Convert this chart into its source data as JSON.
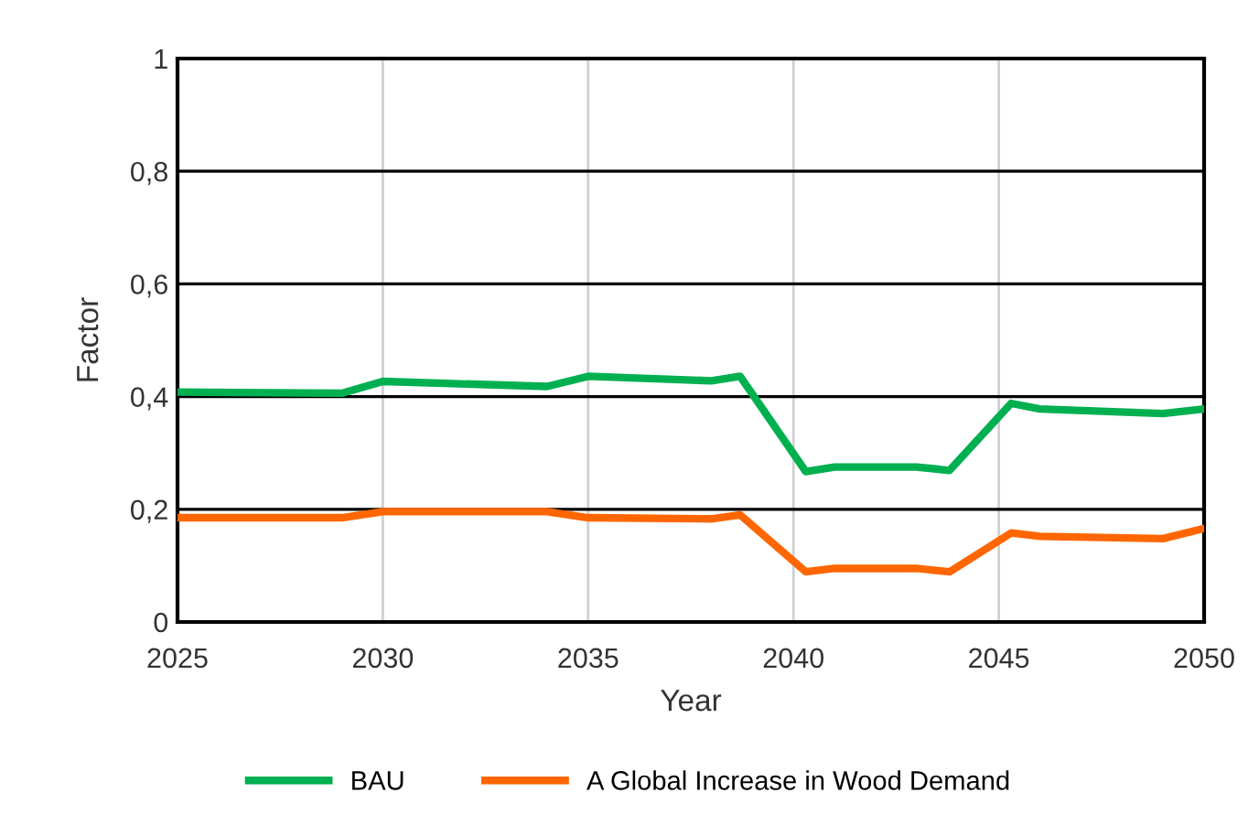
{
  "chart_data": {
    "type": "line",
    "xlabel": "Year",
    "ylabel": "Factor",
    "series": [
      {
        "name": "BAU",
        "color": "#00b050",
        "x": [
          2025,
          2029,
          2030,
          2034,
          2035,
          2038,
          2038.7,
          2040.3,
          2041,
          2043,
          2043.8,
          2045.3,
          2046,
          2049,
          2050
        ],
        "values": [
          0.408,
          0.406,
          0.427,
          0.418,
          0.436,
          0.428,
          0.436,
          0.267,
          0.275,
          0.275,
          0.269,
          0.388,
          0.378,
          0.37,
          0.378
        ]
      },
      {
        "name": "A Global Increase in Wood Demand",
        "color": "#ff6600",
        "x": [
          2025,
          2029,
          2030,
          2034,
          2035,
          2038,
          2038.7,
          2040.3,
          2041,
          2043,
          2043.8,
          2045.3,
          2046,
          2049,
          2050
        ],
        "values": [
          0.185,
          0.185,
          0.196,
          0.196,
          0.185,
          0.183,
          0.19,
          0.089,
          0.095,
          0.095,
          0.089,
          0.158,
          0.152,
          0.148,
          0.166
        ]
      }
    ],
    "xlim": [
      2025,
      2050
    ],
    "xticks": [
      2025,
      2030,
      2035,
      2040,
      2045,
      2050
    ],
    "ylim": [
      0,
      1
    ],
    "yticks": [
      0,
      {
        "value": 0.2,
        "label": "0,2"
      },
      {
        "value": 0.4,
        "label": "0,4"
      },
      {
        "value": 0.6,
        "label": "0,6"
      },
      {
        "value": 0.8,
        "label": "0,8"
      },
      1
    ],
    "grid": true,
    "legend": "bottom",
    "marker": "none",
    "line_style": "solid"
  }
}
